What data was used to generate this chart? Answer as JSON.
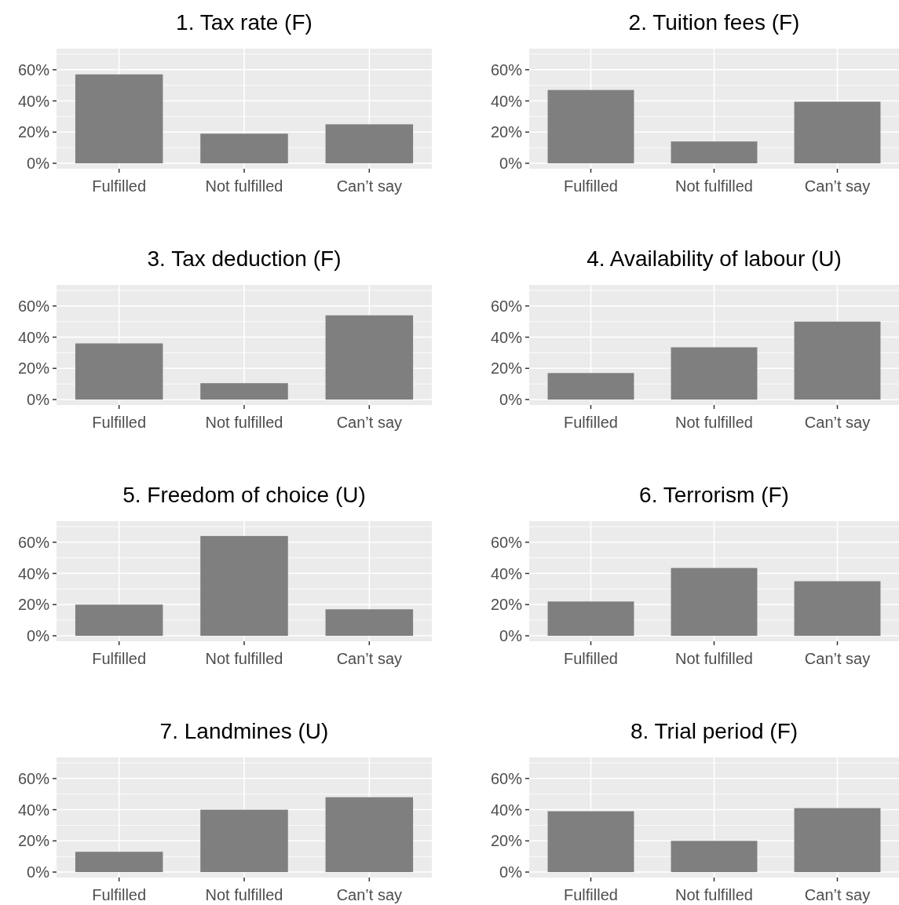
{
  "chart_data": [
    {
      "type": "bar",
      "title": "1. Tax rate (F)",
      "categories": [
        "Fulfilled",
        "Not fulfilled",
        "Can’t say"
      ],
      "values": [
        57,
        19,
        25
      ],
      "color": "#7f7f7f",
      "ylim": [
        -3.5,
        73.5
      ],
      "yticks": [
        {
          "value": 0,
          "label": "0%"
        },
        {
          "value": 20,
          "label": "20%"
        },
        {
          "value": 40,
          "label": "40%"
        },
        {
          "value": 60,
          "label": "60%"
        }
      ],
      "grid": true
    },
    {
      "type": "bar",
      "title": "2. Tuition fees (F)",
      "categories": [
        "Fulfilled",
        "Not fulfilled",
        "Can’t say"
      ],
      "values": [
        47,
        14,
        39.5
      ],
      "color": "#7f7f7f",
      "ylim": [
        -3.5,
        73.5
      ],
      "yticks": [
        {
          "value": 0,
          "label": "0%"
        },
        {
          "value": 20,
          "label": "20%"
        },
        {
          "value": 40,
          "label": "40%"
        },
        {
          "value": 60,
          "label": "60%"
        }
      ],
      "grid": true
    },
    {
      "type": "bar",
      "title": "3. Tax deduction (F)",
      "categories": [
        "Fulfilled",
        "Not fulfilled",
        "Can’t say"
      ],
      "values": [
        36,
        10.5,
        54
      ],
      "color": "#7f7f7f",
      "ylim": [
        -3.5,
        73.5
      ],
      "yticks": [
        {
          "value": 0,
          "label": "0%"
        },
        {
          "value": 20,
          "label": "20%"
        },
        {
          "value": 40,
          "label": "40%"
        },
        {
          "value": 60,
          "label": "60%"
        }
      ],
      "grid": true
    },
    {
      "type": "bar",
      "title": "4. Availability of labour (U)",
      "categories": [
        "Fulfilled",
        "Not fulfilled",
        "Can’t say"
      ],
      "values": [
        17,
        33.5,
        50
      ],
      "color": "#7f7f7f",
      "ylim": [
        -3.5,
        73.5
      ],
      "yticks": [
        {
          "value": 0,
          "label": "0%"
        },
        {
          "value": 20,
          "label": "20%"
        },
        {
          "value": 40,
          "label": "40%"
        },
        {
          "value": 60,
          "label": "60%"
        }
      ],
      "grid": true
    },
    {
      "type": "bar",
      "title": "5. Freedom of choice (U)",
      "categories": [
        "Fulfilled",
        "Not fulfilled",
        "Can’t say"
      ],
      "values": [
        20,
        64,
        17
      ],
      "color": "#7f7f7f",
      "ylim": [
        -3.5,
        73.5
      ],
      "yticks": [
        {
          "value": 0,
          "label": "0%"
        },
        {
          "value": 20,
          "label": "20%"
        },
        {
          "value": 40,
          "label": "40%"
        },
        {
          "value": 60,
          "label": "60%"
        }
      ],
      "grid": true
    },
    {
      "type": "bar",
      "title": "6. Terrorism (F)",
      "categories": [
        "Fulfilled",
        "Not fulfilled",
        "Can’t say"
      ],
      "values": [
        22,
        43.5,
        35
      ],
      "color": "#7f7f7f",
      "ylim": [
        -3.5,
        73.5
      ],
      "yticks": [
        {
          "value": 0,
          "label": "0%"
        },
        {
          "value": 20,
          "label": "20%"
        },
        {
          "value": 40,
          "label": "40%"
        },
        {
          "value": 60,
          "label": "60%"
        }
      ],
      "grid": true
    },
    {
      "type": "bar",
      "title": "7. Landmines (U)",
      "categories": [
        "Fulfilled",
        "Not fulfilled",
        "Can’t say"
      ],
      "values": [
        13,
        40,
        48
      ],
      "color": "#7f7f7f",
      "ylim": [
        -3.5,
        73.5
      ],
      "yticks": [
        {
          "value": 0,
          "label": "0%"
        },
        {
          "value": 20,
          "label": "20%"
        },
        {
          "value": 40,
          "label": "40%"
        },
        {
          "value": 60,
          "label": "60%"
        }
      ],
      "grid": true
    },
    {
      "type": "bar",
      "title": "8. Trial period (F)",
      "categories": [
        "Fulfilled",
        "Not fulfilled",
        "Can’t say"
      ],
      "values": [
        39,
        20,
        41
      ],
      "color": "#7f7f7f",
      "ylim": [
        -3.5,
        73.5
      ],
      "yticks": [
        {
          "value": 0,
          "label": "0%"
        },
        {
          "value": 20,
          "label": "20%"
        },
        {
          "value": 40,
          "label": "40%"
        },
        {
          "value": 60,
          "label": "60%"
        }
      ],
      "grid": true
    }
  ]
}
